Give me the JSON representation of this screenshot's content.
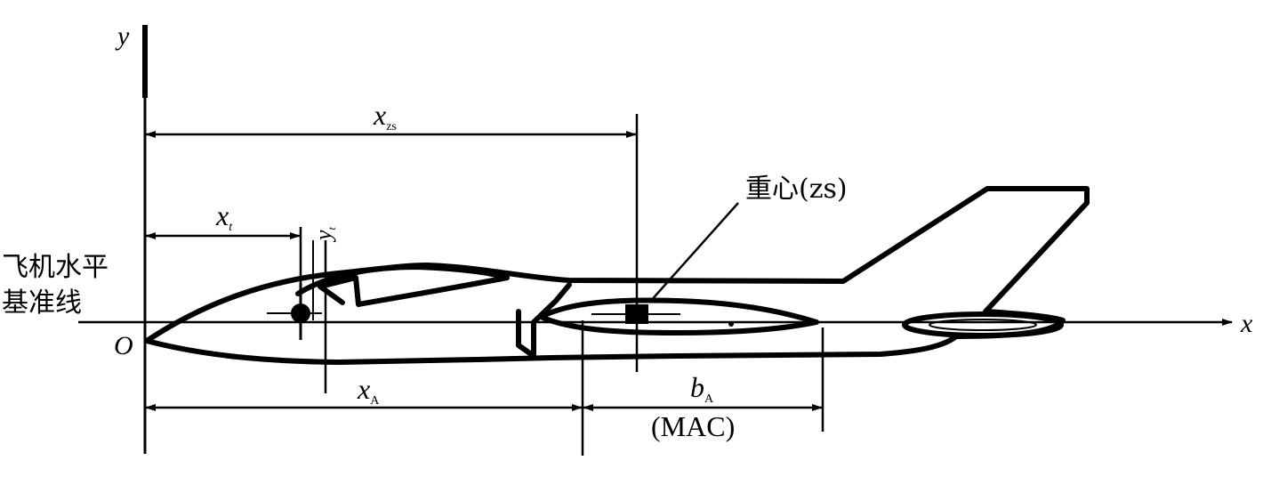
{
  "axes": {
    "y_label": "y",
    "x_label": "x",
    "origin_label": "O"
  },
  "datum_label": {
    "line1": "飞机水平",
    "line2": "基准线"
  },
  "dimensions": {
    "x_zs": {
      "main": "x",
      "sub": "zs"
    },
    "x_t": {
      "main": "x",
      "sub": "t"
    },
    "y_t": {
      "main": "y",
      "sub": "t"
    },
    "x_A": {
      "main": "x",
      "sub": "A"
    },
    "b_A": {
      "main": "b",
      "sub": "A"
    },
    "mac": "(MAC)"
  },
  "cg_label": "重心(zs)"
}
